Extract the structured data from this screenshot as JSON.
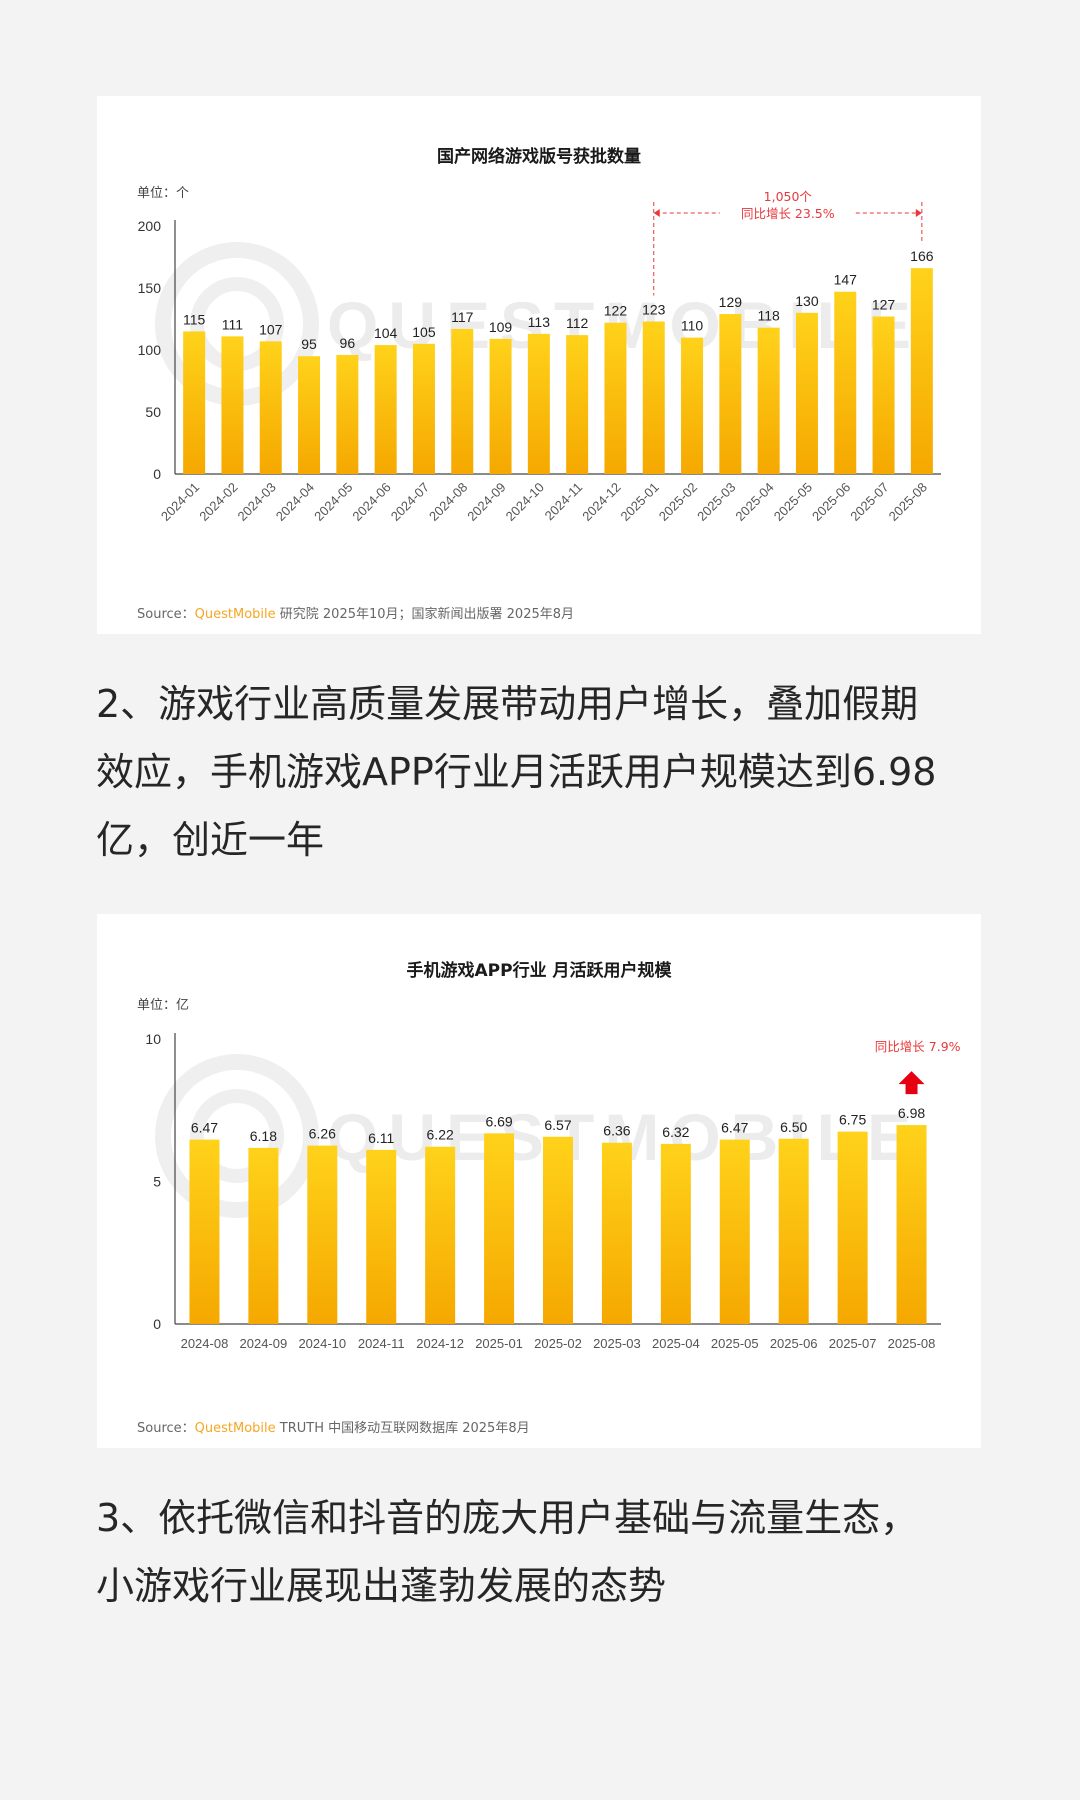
{
  "chart1": {
    "title": "国产网络游戏版号获批数量",
    "unit": "单位：个",
    "source_prefix": "Source：",
    "source_brand": "QuestMobile",
    "source_rest": " 研究院 2025年10月；国家新闻出版署 2025年8月",
    "watermark": "QUESTMOBILE",
    "annotation_line1": "1,050个",
    "annotation_line2": "同比增长 23.5%",
    "colors": {
      "bar_top": "#ffd21a",
      "bar_bottom": "#f5a800",
      "annotation": "#e8383b"
    }
  },
  "chart2": {
    "title": "手机游戏APP行业 月活跃用户规模",
    "unit": "单位：亿",
    "source_prefix": "Source：",
    "source_brand": "QuestMobile",
    "source_rest": " TRUTH 中国移动互联网数据库 2025年8月",
    "watermark": "QUESTMOBILE",
    "annotation": "同比增长 7.9%",
    "colors": {
      "bar_top": "#ffd21a",
      "bar_bottom": "#f5a800",
      "annotation": "#e8383b",
      "arrow": "#e60012"
    }
  },
  "paragraph2": "2、游戏行业高质量发展带动用户增长，叠加假期\n效应，手机游戏APP行业月活跃用户规模达到6.98\n亿，创近一年",
  "paragraph3": "3、依托微信和抖音的庞大用户基础与流量生态，\n小游戏行业展现出蓬勃发展的态势",
  "chart_data": [
    {
      "type": "bar",
      "title": "国产网络游戏版号获批数量",
      "ylabel": "单位：个",
      "xlabel": "",
      "categories": [
        "2024-01",
        "2024-02",
        "2024-03",
        "2024-04",
        "2024-05",
        "2024-06",
        "2024-07",
        "2024-08",
        "2024-09",
        "2024-10",
        "2024-11",
        "2024-12",
        "2025-01",
        "2025-02",
        "2025-03",
        "2025-04",
        "2025-05",
        "2025-06",
        "2025-07",
        "2025-08"
      ],
      "values": [
        115,
        111,
        107,
        95,
        96,
        104,
        105,
        117,
        109,
        113,
        112,
        122,
        123,
        110,
        129,
        118,
        130,
        147,
        127,
        166
      ],
      "yticks": [
        0,
        50,
        100,
        150,
        200
      ],
      "ylim": [
        0,
        200
      ],
      "grid": false,
      "annotation": {
        "from": "2025-01",
        "to": "2025-08",
        "text": [
          "1,050个",
          "同比增长 23.5%"
        ]
      }
    },
    {
      "type": "bar",
      "title": "手机游戏APP行业 月活跃用户规模",
      "ylabel": "单位：亿",
      "xlabel": "",
      "categories": [
        "2024-08",
        "2024-09",
        "2024-10",
        "2024-11",
        "2024-12",
        "2025-01",
        "2025-02",
        "2025-03",
        "2025-04",
        "2025-05",
        "2025-06",
        "2025-07",
        "2025-08"
      ],
      "values": [
        6.47,
        6.18,
        6.26,
        6.11,
        6.22,
        6.69,
        6.57,
        6.36,
        6.32,
        6.47,
        6.5,
        6.75,
        6.98
      ],
      "value_labels": [
        "6.47",
        "6.18",
        "6.26",
        "6.11",
        "6.22",
        "6.69",
        "6.57",
        "6.36",
        "6.32",
        "6.47",
        "6.50",
        "6.75",
        "6.98"
      ],
      "yticks": [
        0,
        5,
        10
      ],
      "ylim": [
        0,
        10
      ],
      "grid": false,
      "annotation": {
        "at": "2025-08",
        "text": "同比增长 7.9%"
      }
    }
  ]
}
